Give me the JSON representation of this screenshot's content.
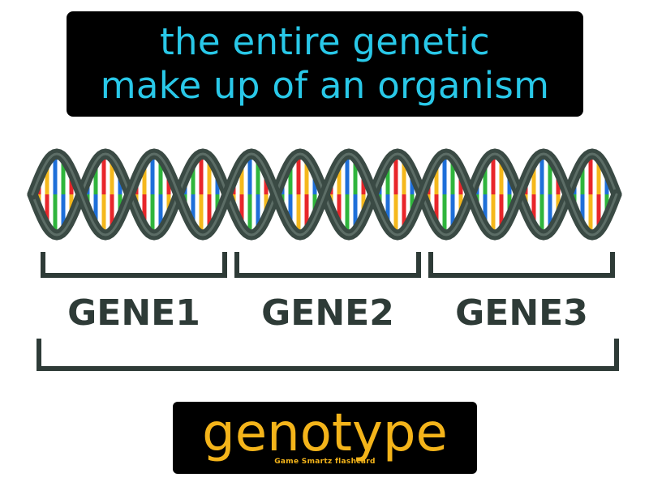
{
  "definition": {
    "line1": "the entire genetic",
    "line2": "make up of an organism"
  },
  "genes": [
    "GENE1",
    "GENE2",
    "GENE3"
  ],
  "term": "genotype",
  "credit": "Game Smartz flashcard",
  "colors": {
    "definition_text": "#29c8e8",
    "term_text": "#f4b41a",
    "strand": "#3a4a44",
    "bracket": "#2e3b37",
    "base_pairs": [
      "#e8262a",
      "#f5b81c",
      "#1e6fd9",
      "#2fb53c"
    ]
  },
  "icons": [
    "dna-double-helix-icon"
  ]
}
